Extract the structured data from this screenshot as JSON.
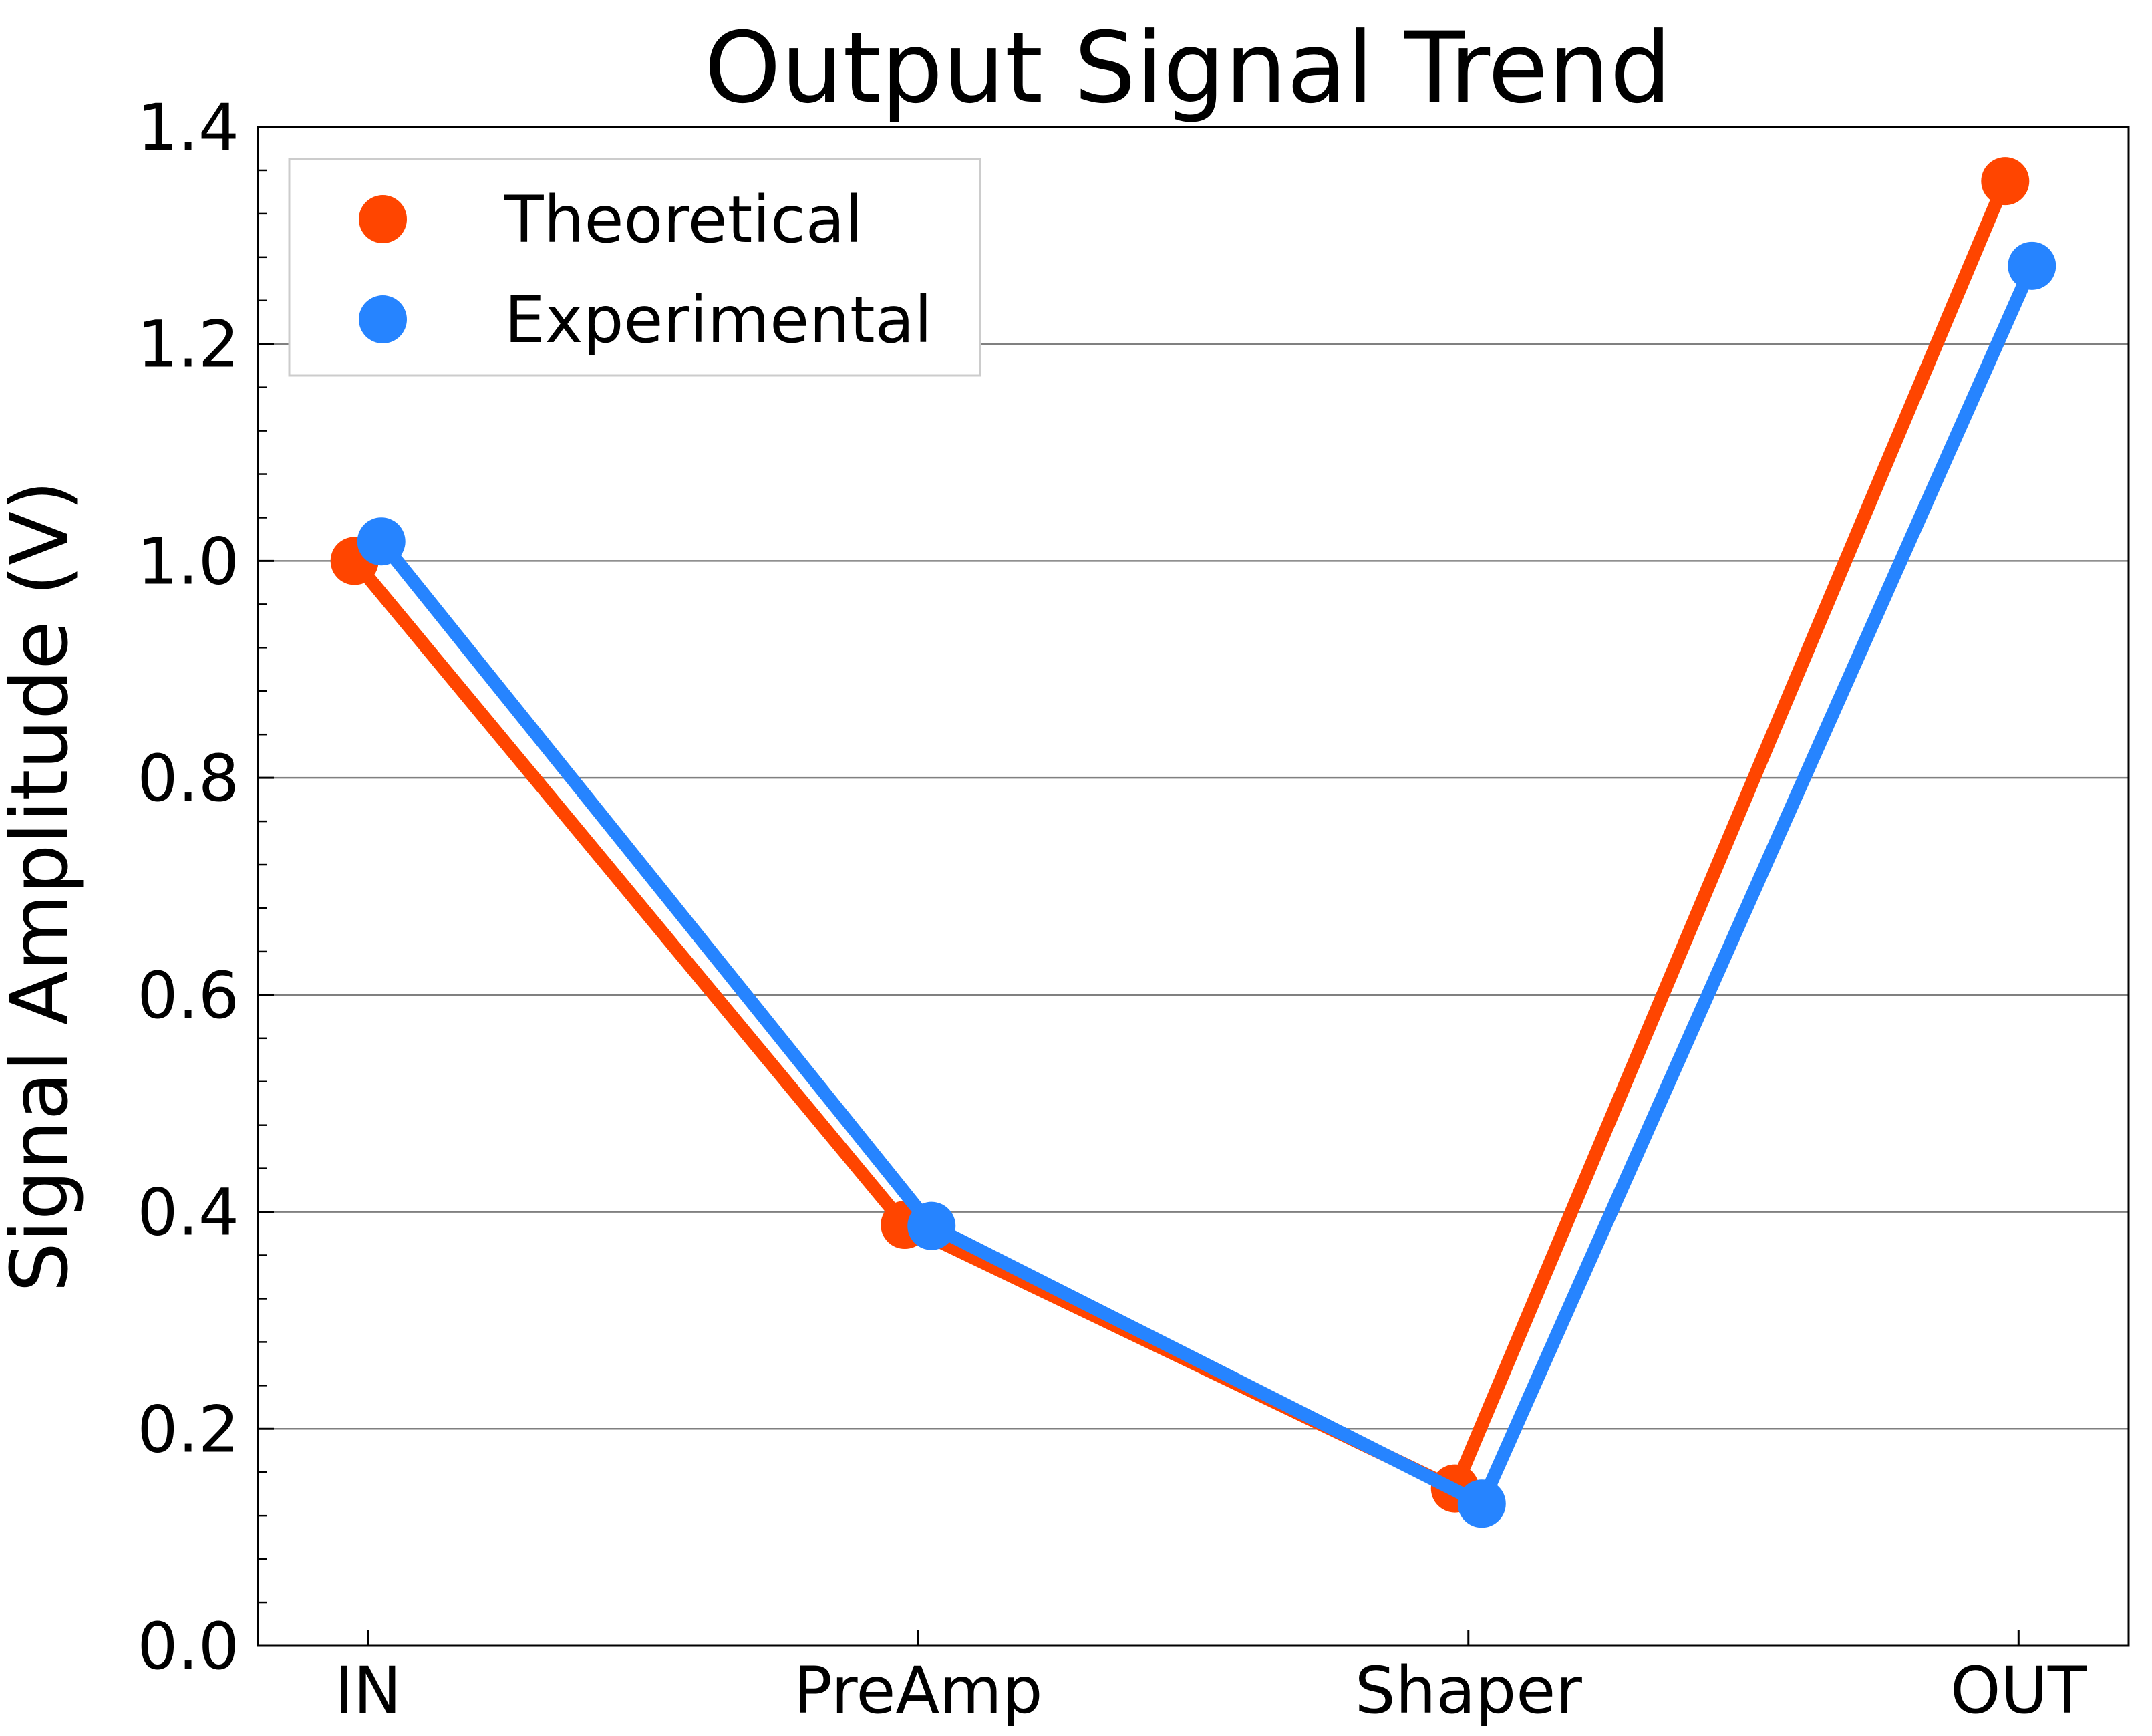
{
  "chart_data": {
    "type": "line",
    "title": "Output Signal Trend",
    "xlabel": "",
    "ylabel": "Signal Amplitude (V)",
    "categories": [
      "IN",
      "PreAmp",
      "Shaper",
      "OUT"
    ],
    "ylim": [
      0.0,
      1.4
    ],
    "yticks": [
      "0.0",
      "0.2",
      "0.4",
      "0.6",
      "0.8",
      "1.0",
      "1.2",
      "1.4"
    ],
    "grid": "horizontal",
    "legend_position": "top-left",
    "series": [
      {
        "name": "Theoretical",
        "color": "#ff4500",
        "values": [
          1.0,
          0.388,
          0.145,
          1.35
        ]
      },
      {
        "name": "Experimental",
        "color": "#2684ff",
        "values": [
          1.018,
          0.387,
          0.131,
          1.272
        ]
      }
    ]
  }
}
